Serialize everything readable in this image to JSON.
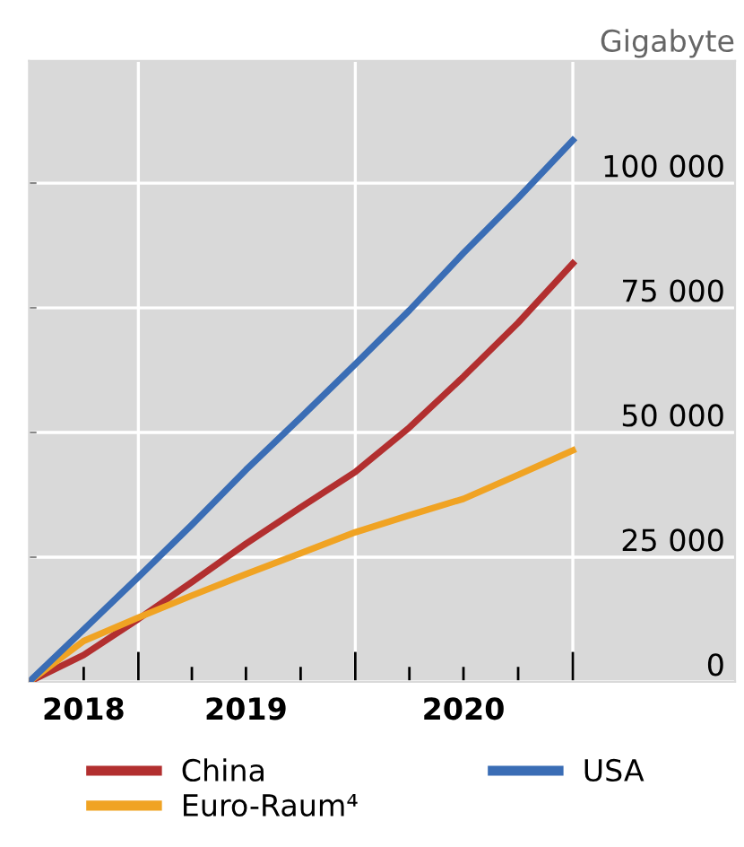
{
  "chart_data": {
    "type": "line",
    "ylabel": "Gigabyte",
    "x": [
      "2018-07",
      "2018-10",
      "2019-01",
      "2019-04",
      "2019-07",
      "2019-10",
      "2020-01",
      "2020-04",
      "2020-07",
      "2020-10",
      "2021-01"
    ],
    "series": [
      {
        "name": "China",
        "color": "#b22f2f",
        "values": [
          0,
          5400,
          12600,
          20000,
          27700,
          35000,
          42100,
          51000,
          61200,
          72000,
          83900
        ]
      },
      {
        "name": "Euro-Raum⁴",
        "color": "#f0a323",
        "values": [
          0,
          8200,
          12900,
          17300,
          21600,
          25800,
          30000,
          33400,
          36700,
          41500,
          46400
        ]
      },
      {
        "name": "USA",
        "color": "#3a6db5",
        "values": [
          0,
          10500,
          21000,
          31500,
          42500,
          53000,
          63700,
          74500,
          86000,
          97000,
          108600
        ]
      }
    ],
    "xlim": [
      "2018-07",
      "2021-10"
    ],
    "xticks": [
      {
        "value": "2018-10",
        "label": "2018"
      },
      {
        "value": "2019-01",
        "label": null
      },
      {
        "value": "2019-04",
        "label": null
      },
      {
        "value": "2019-07",
        "label": "2019"
      },
      {
        "value": "2019-10",
        "label": null
      },
      {
        "value": "2020-01",
        "label": null
      },
      {
        "value": "2020-04",
        "label": null
      },
      {
        "value": "2020-07",
        "label": "2020"
      },
      {
        "value": "2020-10",
        "label": null
      },
      {
        "value": "2021-01",
        "label": null
      }
    ],
    "ylim": [
      0,
      124500
    ],
    "yticks": [
      {
        "value": 0,
        "label": "0"
      },
      {
        "value": 25000,
        "label": "25 000"
      },
      {
        "value": 50000,
        "label": "50 000"
      },
      {
        "value": 75000,
        "label": "75 000"
      },
      {
        "value": 100000,
        "label": "100 000"
      }
    ],
    "grid": true,
    "legend": "bottom",
    "marker": "none",
    "line_style": "solid"
  }
}
